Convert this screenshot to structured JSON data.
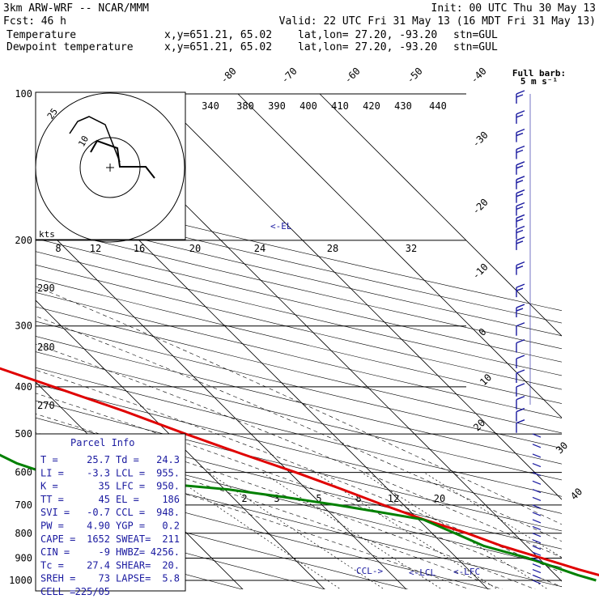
{
  "header": {
    "model": "3km ARW-WRF -- NCAR/MMM",
    "init": "Init: 00 UTC Thu 30 May 13",
    "fcst_label": "Fcst:",
    "fcst_value": "46 h",
    "valid": "Valid: 22 UTC Fri 31 May 13 (16 MDT Fri 31 May 13)"
  },
  "legend": [
    {
      "name": "Temperature",
      "color": "#e00000",
      "coords": "x,y=651.21, 65.02",
      "latlon": "lat,lon= 27.20, -93.20",
      "stn": "stn=GUL"
    },
    {
      "name": "Dewpoint temperature",
      "color": "#008000",
      "coords": "x,y=651.21, 65.02",
      "latlon": "lat,lon= 27.20, -93.20",
      "stn": "stn=GUL"
    }
  ],
  "barb_key": {
    "line1": "Full barb:",
    "line2": "5 m s⁻¹"
  },
  "hodograph": {
    "unit": "kts",
    "ring_labels": [
      "10",
      "25"
    ]
  },
  "parcel_info": {
    "title": "Parcel Info",
    "rows": [
      [
        "T  =",
        "25.7",
        "Td =",
        "24.3"
      ],
      [
        "LI =",
        "-3.3",
        "LCL =",
        "955."
      ],
      [
        "K  =",
        "35",
        "LFC =",
        "950."
      ],
      [
        "TT =",
        "45",
        "EL =",
        "186"
      ],
      [
        "SVI =",
        "-0.7",
        "CCL =",
        "948."
      ],
      [
        "PW =",
        "4.90",
        "YGP =",
        "0.2"
      ],
      [
        "CAPE =",
        "1652",
        "SWEAT=",
        "211"
      ],
      [
        "CIN =",
        "-9",
        "HWBZ=",
        "4256."
      ],
      [
        "Tc =",
        "27.4",
        "SHEAR=",
        "20."
      ],
      [
        "SREH =",
        "73",
        "LAPSE=",
        "5.8"
      ],
      [
        "CELL =",
        "225/05",
        "",
        ""
      ]
    ]
  },
  "level_markers": {
    "el": "<-EL",
    "ccl": "CCL->",
    "lcl": "<-LCL",
    "lfc": "<-LFC"
  },
  "chart_data": {
    "type": "line",
    "x_axis": "temperature (skewed)",
    "y_axis": "pressure (hPa, log)",
    "pressure_ticks": [
      100,
      200,
      300,
      400,
      500,
      600,
      700,
      800,
      900,
      1000
    ],
    "isotherm_labels": [
      "-80",
      "-70",
      "-60",
      "-50",
      "-40",
      "-30",
      "-20",
      "-10",
      "0",
      "10",
      "20",
      "30",
      "40"
    ],
    "theta_labels": [
      "340",
      "380",
      "390",
      "400",
      "410",
      "420",
      "430",
      "440"
    ],
    "mixing_ratio_labels_upper": [
      "8",
      "12",
      "16",
      "20",
      "24",
      "28",
      "32"
    ],
    "mixing_ratio_labels_lower": [
      "2",
      "3",
      "5",
      "8",
      "12",
      "20"
    ],
    "dry_adiabat_left_labels": [
      "290",
      "280",
      "270"
    ],
    "series": [
      {
        "name": "Temperature",
        "color": "#e00000",
        "points": [
          [
            1000,
            26.4
          ],
          [
            975,
            25.3
          ],
          [
            950,
            23.5
          ],
          [
            900,
            20.4
          ],
          [
            850,
            17.0
          ],
          [
            800,
            14.3
          ],
          [
            750,
            10.7
          ],
          [
            700,
            7.5
          ],
          [
            650,
            4.4
          ],
          [
            600,
            0.8
          ],
          [
            550,
            -3.5
          ],
          [
            500,
            -8.0
          ],
          [
            450,
            -12.6
          ],
          [
            400,
            -18.4
          ],
          [
            350,
            -25.0
          ],
          [
            300,
            -32.5
          ],
          [
            250,
            -41.9
          ],
          [
            200,
            -52.3
          ],
          [
            175,
            -57.3
          ],
          [
            150,
            -62.5
          ],
          [
            125,
            -67.0
          ],
          [
            110,
            -69.0
          ],
          [
            100,
            -70.2
          ]
        ]
      },
      {
        "name": "Dewpoint temperature",
        "color": "#008000",
        "points": [
          [
            1000,
            24.3
          ],
          [
            975,
            22.7
          ],
          [
            950,
            21.4
          ],
          [
            900,
            18.7
          ],
          [
            850,
            14.8
          ],
          [
            800,
            12.8
          ],
          [
            750,
            10.6
          ],
          [
            725,
            6.4
          ],
          [
            700,
            1.8
          ],
          [
            675,
            -3.5
          ],
          [
            650,
            -9.6
          ],
          [
            625,
            -20.0
          ],
          [
            600,
            -30.0
          ],
          [
            575,
            -32.2
          ],
          [
            550,
            -33.4
          ],
          [
            500,
            -35.6
          ],
          [
            450,
            -38.6
          ],
          [
            400,
            -43.2
          ],
          [
            350,
            -45.8
          ],
          [
            300,
            -53.0
          ],
          [
            250,
            -55.8
          ],
          [
            200,
            -63.2
          ],
          [
            175,
            -68.8
          ],
          [
            150,
            -73.8
          ],
          [
            125,
            -80.5
          ],
          [
            100,
            -85.0
          ]
        ]
      }
    ],
    "wind_barbs_levels": [
      1000,
      975,
      950,
      925,
      900,
      875,
      850,
      825,
      800,
      775,
      750,
      725,
      700,
      675,
      650,
      625,
      600,
      575,
      550,
      525,
      500,
      475,
      450,
      425,
      400,
      375,
      350,
      325,
      300,
      275,
      250,
      225,
      200,
      190,
      180,
      170,
      160,
      150,
      140,
      130,
      120,
      110,
      100
    ]
  }
}
